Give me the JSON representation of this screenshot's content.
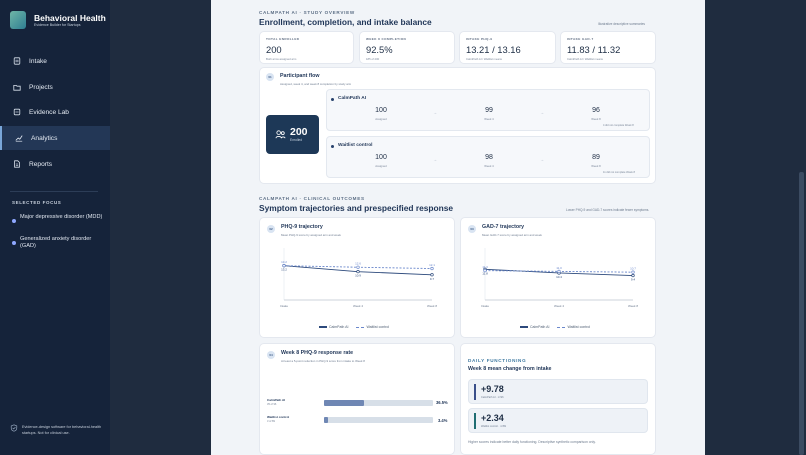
{
  "brand": {
    "title": "Behavioral Health",
    "subtitle": "Evidence Builder for Startups"
  },
  "nav": [
    {
      "label": "Intake",
      "icon": "clipboard-icon",
      "active": false
    },
    {
      "label": "Projects",
      "icon": "folder-icon",
      "active": false
    },
    {
      "label": "Evidence Lab",
      "icon": "flask-icon",
      "active": false
    },
    {
      "label": "Analytics",
      "icon": "chart-line-icon",
      "active": true
    },
    {
      "label": "Reports",
      "icon": "document-icon",
      "active": false
    }
  ],
  "focus": {
    "title": "SELECTED FOCUS",
    "items": [
      "Major depressive disorder (MDD)",
      "Generalized anxiety disorder (GAD)"
    ]
  },
  "footer": "Evidence-design software for behavioral-health startups. Not for clinical use.",
  "overview": {
    "eyebrow": "CALMPATH AI · STUDY OVERVIEW",
    "title": "Enrollment, completion, and intake balance",
    "note": "Illustrative descriptive summaries",
    "kpis": [
      {
        "label": "TOTAL ENROLLED",
        "value": "200",
        "sub": "Both arms assigned arm"
      },
      {
        "label": "WEEK 8 COMPLETION",
        "value": "92.5%",
        "sub": "185 of 200"
      },
      {
        "label": "INTAKE PHQ-9",
        "value": "13.21 / 13.16",
        "sub": "CalmPath AI / Waitlist means"
      },
      {
        "label": "INTAKE GAD-7",
        "value": "11.83 / 11.32",
        "sub": "CalmPath AI / Waitlist means"
      }
    ]
  },
  "flow": {
    "badge": "01",
    "title": "Participant flow",
    "subtitle": "Assigned, week 4, and week 8 completion by study arm",
    "enrolled_value": "200",
    "enrolled_label": "Enrolled",
    "arms": [
      {
        "name": "CalmPath AI",
        "stages": [
          {
            "n": "100",
            "l": "Assigned"
          },
          {
            "n": "99",
            "l": "Week 4"
          },
          {
            "n": "96",
            "l": "Week 8"
          }
        ],
        "note": "4 did not complete Week 8"
      },
      {
        "name": "Waitlist control",
        "stages": [
          {
            "n": "100",
            "l": "Assigned"
          },
          {
            "n": "98",
            "l": "Week 4"
          },
          {
            "n": "89",
            "l": "Week 8"
          }
        ],
        "note": "11 did not complete Week 8"
      }
    ]
  },
  "outcomes": {
    "eyebrow": "CALMPATH AI · CLINICAL OUTCOMES",
    "title": "Symptom trajectories and prespecified response",
    "note": "Lower PHQ-9 and GAD-7 scores indicate fewer symptoms."
  },
  "chart_data": [
    {
      "type": "line",
      "title": "PHQ-9 trajectory",
      "subtitle": "Mean PHQ-9 score by assigned arm and week",
      "x": [
        "Intake",
        "Week 4",
        "Week 8"
      ],
      "ylim": [
        0,
        20
      ],
      "series": [
        {
          "name": "CalmPath AI",
          "values": [
            13.2,
            10.9,
            9.7
          ]
        },
        {
          "name": "Waitlist control",
          "values": [
            13.2,
            12.6,
            12.1
          ]
        }
      ]
    },
    {
      "type": "line",
      "title": "GAD-7 trajectory",
      "subtitle": "Mean GAD-7 score by assigned arm and week",
      "x": [
        "Intake",
        "Week 4",
        "Week 8"
      ],
      "ylim": [
        0,
        20
      ],
      "series": [
        {
          "name": "CalmPath AI",
          "values": [
            11.8,
            10.4,
            9.4
          ]
        },
        {
          "name": "Waitlist control",
          "values": [
            11.3,
            11.0,
            10.7
          ]
        }
      ]
    },
    {
      "type": "bar",
      "title": "Week 8 PHQ-9 response rate",
      "subtitle": "At least a 5-point reduction in PHQ-9 score from intake to Week 8",
      "categories": [
        "CalmPath AI",
        "Waitlist control"
      ],
      "values": [
        36.5,
        3.4
      ],
      "ylim": [
        0,
        100
      ]
    }
  ],
  "trajectory_cards": [
    {
      "badge": "02",
      "title": "PHQ-9 trajectory",
      "subtitle": "Mean PHQ-9 score by assigned arm and week",
      "ticks": [
        "Intake",
        "Week 4",
        "Week 8"
      ],
      "labels": [
        "13.2",
        "10.9",
        "9.7",
        "13.2",
        "12.6",
        "12.1"
      ]
    },
    {
      "badge": "03",
      "title": "GAD-7 trajectory",
      "subtitle": "Mean GAD-7 score by assigned arm and week",
      "ticks": [
        "Intake",
        "Week 4",
        "Week 8"
      ],
      "labels": [
        "11.8",
        "10.4",
        "9.4",
        "11.3",
        "11.0",
        "10.7"
      ]
    }
  ],
  "legend": {
    "a": "CalmPath AI",
    "b": "Waitlist control"
  },
  "response": {
    "badge": "04",
    "title": "Week 8 PHQ-9 response rate",
    "subtitle": "At least a 5-point reduction in PHQ-9 score from intake to Week 8",
    "bars": [
      {
        "name": "CalmPath AI",
        "sub": "35 of 96",
        "pct": "36.5%",
        "value": 36.5
      },
      {
        "name": "Waitlist control",
        "sub": "3 of 89",
        "pct": "3.4%",
        "value": 3.4
      }
    ]
  },
  "daily": {
    "eyebrow": "DAILY FUNCTIONING",
    "title": "Week 8 mean change from intake",
    "items": [
      {
        "value": "+9.78",
        "sub": "CalmPath AI · n=96",
        "color": "#3a4f8a"
      },
      {
        "value": "+2.34",
        "sub": "Waitlist control · n=89",
        "color": "#1f6d72"
      }
    ],
    "note": "Higher scores indicate better daily functioning. Descriptive synthetic comparison only."
  }
}
